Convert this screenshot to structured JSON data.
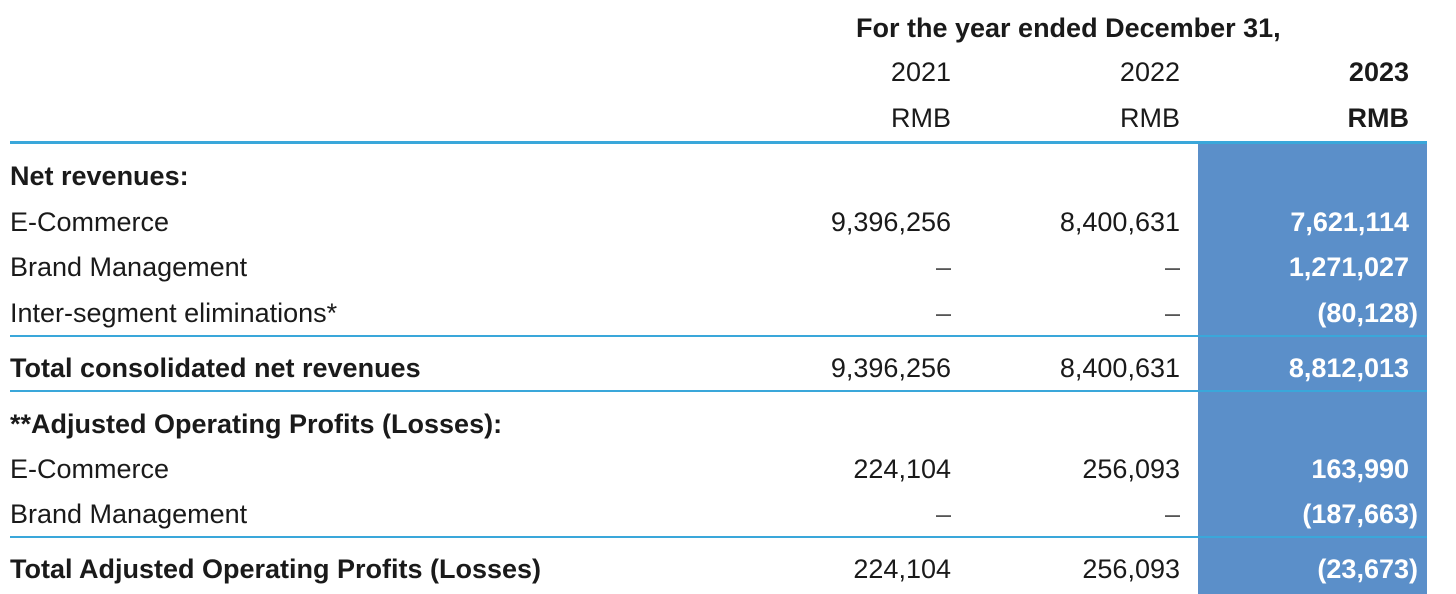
{
  "header": {
    "caption": "For the year ended December 31,",
    "years": [
      "2021",
      "2022",
      "2023"
    ],
    "currencies": [
      "RMB",
      "RMB",
      "RMB"
    ]
  },
  "rows": [
    {
      "label": "Net revenues:",
      "values": [
        "",
        "",
        ""
      ],
      "bold": true
    },
    {
      "label": "E-Commerce",
      "values": [
        "9,396,256",
        "8,400,631",
        "7,621,114"
      ]
    },
    {
      "label": "Brand Management",
      "values": [
        "–",
        "–",
        "1,271,027"
      ]
    },
    {
      "label": "Inter-segment eliminations*",
      "values": [
        "–",
        "–",
        "(80,128)"
      ]
    },
    {
      "label": "Total consolidated net revenues",
      "values": [
        "9,396,256",
        "8,400,631",
        "8,812,013"
      ],
      "bold": true
    },
    {
      "label": "**Adjusted Operating Profits (Losses):",
      "values": [
        "",
        "",
        ""
      ],
      "bold": true
    },
    {
      "label": "E-Commerce",
      "values": [
        "224,104",
        "256,093",
        "163,990"
      ]
    },
    {
      "label": "Brand Management",
      "values": [
        "–",
        "–",
        "(187,663)"
      ]
    },
    {
      "label": "Total Adjusted Operating Profits (Losses)",
      "values": [
        "224,104",
        "256,093",
        "(23,673)"
      ],
      "bold": true
    }
  ],
  "colors": {
    "highlight_column": "#5b8fc9",
    "rule": "#3aa7da"
  }
}
